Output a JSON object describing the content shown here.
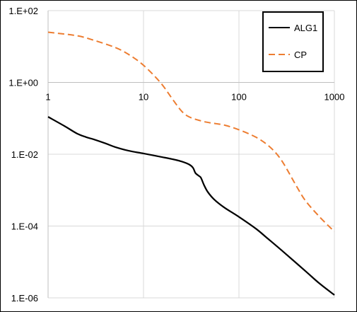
{
  "chart_data": {
    "type": "line",
    "x_scale": "log",
    "y_scale": "log",
    "xlim": [
      1,
      1000
    ],
    "ylim": [
      1e-06,
      100
    ],
    "x_ticks": [
      1,
      10,
      100,
      1000
    ],
    "x_tick_labels": [
      "1",
      "10",
      "100",
      "1000"
    ],
    "y_ticks": [
      100,
      1,
      0.01,
      0.0001,
      1e-06
    ],
    "y_tick_labels": [
      "1.E+02",
      "1.E+00",
      "1.E-02",
      "1.E-04",
      "1.E-06"
    ],
    "grid": true,
    "legend_position": "top-right",
    "title": "",
    "xlabel": "",
    "ylabel": "",
    "series": [
      {
        "name": "ALG1",
        "color": "#000000",
        "dash": "solid",
        "x": [
          1,
          1.5,
          2,
          2.5,
          3,
          4,
          5,
          7,
          10,
          15,
          20,
          25,
          30,
          33,
          35,
          38,
          40,
          43,
          47,
          55,
          70,
          100,
          150,
          200,
          300,
          500,
          700,
          1000
        ],
        "y": [
          0.11,
          0.06,
          0.038,
          0.03,
          0.026,
          0.02,
          0.016,
          0.0125,
          0.0105,
          0.0085,
          0.0073,
          0.0063,
          0.0052,
          0.0042,
          0.003,
          0.0025,
          0.0022,
          0.0014,
          0.0009,
          0.00055,
          0.00033,
          0.00018,
          8.5e-05,
          4.5e-05,
          1.8e-05,
          5.5e-06,
          2.5e-06,
          1.2e-06
        ]
      },
      {
        "name": "CP",
        "color": "#ED7D31",
        "dash": "dashed",
        "x": [
          1,
          2,
          3,
          5,
          7,
          10,
          15,
          20,
          25,
          30,
          40,
          50,
          70,
          100,
          150,
          200,
          250,
          300,
          400,
          500,
          700,
          1000
        ],
        "y": [
          25,
          20,
          15,
          9.5,
          6,
          3,
          1,
          0.35,
          0.16,
          0.11,
          0.085,
          0.075,
          0.065,
          0.048,
          0.03,
          0.018,
          0.01,
          0.005,
          0.0013,
          0.0005,
          0.00018,
          7e-05
        ]
      }
    ]
  }
}
